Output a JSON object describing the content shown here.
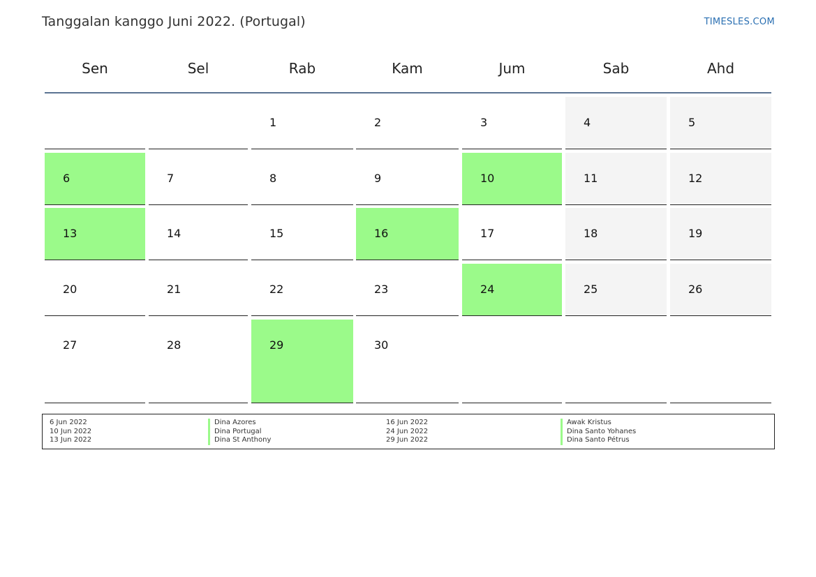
{
  "header": {
    "title": "Tanggalan kanggo Juni 2022. (Portugal)",
    "brand": "TIMESLES.COM"
  },
  "colors": {
    "holiday": "#9bfa8a",
    "weekend": "#f4f4f4",
    "header_rule": "#5b7392",
    "brand": "#2a6fb2"
  },
  "weekdays": [
    "Sen",
    "Sel",
    "Rab",
    "Kam",
    "Jum",
    "Sab",
    "Ahd"
  ],
  "weeks": [
    [
      {
        "day": "",
        "type": "blank"
      },
      {
        "day": "",
        "type": "blank"
      },
      {
        "day": "1",
        "type": "normal"
      },
      {
        "day": "2",
        "type": "normal"
      },
      {
        "day": "3",
        "type": "normal"
      },
      {
        "day": "4",
        "type": "weekend"
      },
      {
        "day": "5",
        "type": "weekend"
      }
    ],
    [
      {
        "day": "6",
        "type": "holiday"
      },
      {
        "day": "7",
        "type": "normal"
      },
      {
        "day": "8",
        "type": "normal"
      },
      {
        "day": "9",
        "type": "normal"
      },
      {
        "day": "10",
        "type": "holiday"
      },
      {
        "day": "11",
        "type": "weekend"
      },
      {
        "day": "12",
        "type": "weekend"
      }
    ],
    [
      {
        "day": "13",
        "type": "holiday"
      },
      {
        "day": "14",
        "type": "normal"
      },
      {
        "day": "15",
        "type": "normal"
      },
      {
        "day": "16",
        "type": "holiday"
      },
      {
        "day": "17",
        "type": "normal"
      },
      {
        "day": "18",
        "type": "weekend"
      },
      {
        "day": "19",
        "type": "weekend"
      }
    ],
    [
      {
        "day": "20",
        "type": "normal"
      },
      {
        "day": "21",
        "type": "normal"
      },
      {
        "day": "22",
        "type": "normal"
      },
      {
        "day": "23",
        "type": "normal"
      },
      {
        "day": "24",
        "type": "holiday"
      },
      {
        "day": "25",
        "type": "weekend"
      },
      {
        "day": "26",
        "type": "weekend"
      }
    ],
    [
      {
        "day": "27",
        "type": "normal"
      },
      {
        "day": "28",
        "type": "normal"
      },
      {
        "day": "29",
        "type": "holiday"
      },
      {
        "day": "30",
        "type": "normal"
      },
      {
        "day": "",
        "type": "blank"
      },
      {
        "day": "",
        "type": "blank"
      },
      {
        "day": "",
        "type": "blank"
      }
    ]
  ],
  "holidays": [
    {
      "date": "6 Jun 2022",
      "name": "Dina Azores"
    },
    {
      "date": "10 Jun 2022",
      "name": "Dina Portugal"
    },
    {
      "date": "13 Jun 2022",
      "name": "Dina St Anthony"
    },
    {
      "date": "16 Jun 2022",
      "name": "Awak Kristus"
    },
    {
      "date": "24 Jun 2022",
      "name": "Dina Santo Yohanes"
    },
    {
      "date": "29 Jun 2022",
      "name": "Dina Santo Pétrus"
    }
  ]
}
